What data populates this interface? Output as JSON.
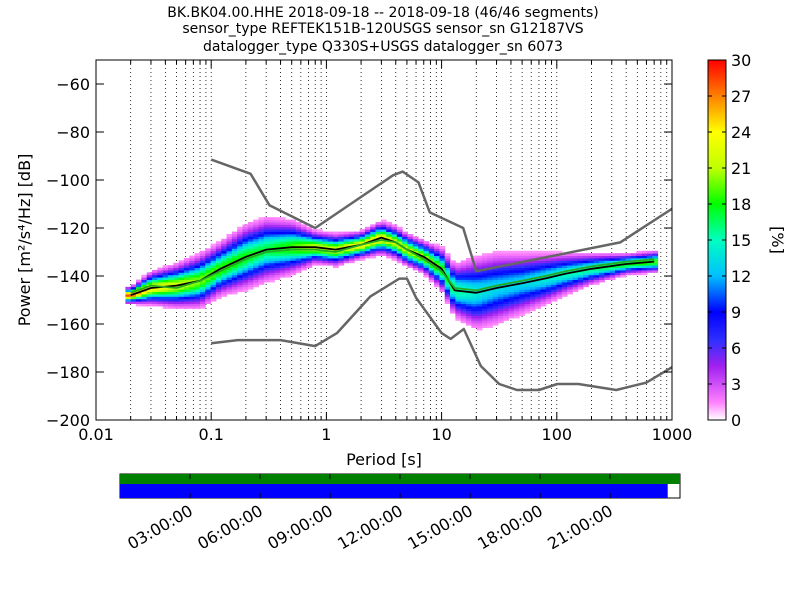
{
  "figure": {
    "title_lines": [
      "BK.BK04.00.HHE   2018-09-18 -- 2018-09-18  (46/46 segments)",
      "sensor_type REFTEK151B-120USGS sensor_sn G12187VS",
      "datalogger_type Q330S+USGS datalogger_sn 6073"
    ]
  },
  "chart_data": [
    {
      "type": "heatmap",
      "xlabel": "Period [s]",
      "ylabel": "Power [m²/s⁴/Hz] [dB]",
      "x_scale": "log",
      "xlim": [
        0.01,
        1000
      ],
      "ylim": [
        -200,
        -50
      ],
      "grid": "vertical-dotted",
      "x_ticks": [
        {
          "value": 0.01,
          "label": "0.01"
        },
        {
          "value": 0.1,
          "label": "0.1"
        },
        {
          "value": 1,
          "label": "1"
        },
        {
          "value": 10,
          "label": "10"
        },
        {
          "value": 100,
          "label": "100"
        },
        {
          "value": 1000,
          "label": "1000"
        }
      ],
      "y_ticks": [
        {
          "value": -60,
          "label": "−60"
        },
        {
          "value": -80,
          "label": "−80"
        },
        {
          "value": -100,
          "label": "−100"
        },
        {
          "value": -120,
          "label": "−120"
        },
        {
          "value": -140,
          "label": "−140"
        },
        {
          "value": -160,
          "label": "−160"
        },
        {
          "value": -180,
          "label": "−180"
        },
        {
          "value": -200,
          "label": "−200"
        }
      ],
      "colorbar": {
        "label": "[%]",
        "range": [
          0,
          30
        ],
        "ticks": [
          "0",
          "3",
          "6",
          "9",
          "12",
          "15",
          "18",
          "21",
          "24",
          "27",
          "30"
        ],
        "colormap": "pqlx"
      },
      "series": [
        {
          "role": "high-noise-model",
          "color": "#666666",
          "x": [
            0.1,
            0.22,
            0.32,
            0.8,
            3.8,
            4.6,
            6.3,
            7.9,
            15.4,
            20,
            354.8,
            1000
          ],
          "y": [
            -91.5,
            -97.4,
            -110.5,
            -120,
            -98,
            -96.5,
            -101,
            -113.5,
            -120,
            -138,
            -126,
            -112
          ]
        },
        {
          "role": "low-noise-model",
          "color": "#666666",
          "x": [
            0.1,
            0.17,
            0.4,
            0.8,
            1.24,
            2.4,
            4.3,
            5,
            6,
            10,
            12,
            15.6,
            21.9,
            31.6,
            45,
            70,
            101,
            154,
            328,
            600,
            1000
          ],
          "y": [
            -168,
            -166.7,
            -166.7,
            -169.2,
            -163.7,
            -148.6,
            -141.1,
            -141.1,
            -149,
            -163.8,
            -166.2,
            -162.1,
            -177.5,
            -185,
            -187.5,
            -187.5,
            -185,
            -185,
            -187.5,
            -184.4,
            -178
          ]
        },
        {
          "role": "mode",
          "color": "#000000",
          "x": [
            0.02,
            0.03,
            0.05,
            0.08,
            0.12,
            0.2,
            0.3,
            0.5,
            0.8,
            1.2,
            2,
            3,
            4,
            5,
            7,
            10,
            13,
            20,
            30,
            50,
            80,
            120,
            200,
            400,
            700
          ],
          "y": [
            -148,
            -145,
            -144,
            -142,
            -137,
            -132,
            -129,
            -128,
            -128,
            -129,
            -127,
            -124,
            -126,
            -129,
            -132,
            -137,
            -146,
            -147,
            -145,
            -143,
            -141,
            -139,
            -137,
            -135,
            -134
          ]
        },
        {
          "role": "mean",
          "color": "#22aa22",
          "x": [
            0.02,
            0.03,
            0.05,
            0.08,
            0.12,
            0.2,
            0.3,
            0.5,
            0.8,
            1.2,
            2,
            3,
            4,
            5,
            7,
            10,
            13,
            20,
            30,
            50,
            80,
            120,
            200,
            400,
            700
          ],
          "y": [
            -147,
            -144,
            -145,
            -142,
            -138,
            -133,
            -130,
            -129,
            -129,
            -130,
            -127,
            -125,
            -126,
            -129,
            -133,
            -138,
            -145,
            -146,
            -144,
            -142,
            -140,
            -138,
            -136,
            -134,
            -133
          ]
        }
      ],
      "density": [
        {
          "x": 0.02,
          "spread": 1.5,
          "peak": 28
        },
        {
          "x": 0.03,
          "spread": 3,
          "peak": 24
        },
        {
          "x": 0.05,
          "spread": 4,
          "peak": 22
        },
        {
          "x": 0.08,
          "spread": 5,
          "peak": 20
        },
        {
          "x": 0.12,
          "spread": 5,
          "peak": 19
        },
        {
          "x": 0.2,
          "spread": 6,
          "peak": 18
        },
        {
          "x": 0.3,
          "spread": 6,
          "peak": 17
        },
        {
          "x": 0.5,
          "spread": 5,
          "peak": 19
        },
        {
          "x": 0.8,
          "spread": 3,
          "peak": 22
        },
        {
          "x": 1.2,
          "spread": 3,
          "peak": 22
        },
        {
          "x": 2,
          "spread": 2.5,
          "peak": 24
        },
        {
          "x": 3,
          "spread": 3,
          "peak": 24
        },
        {
          "x": 4,
          "spread": 3,
          "peak": 22
        },
        {
          "x": 5,
          "spread": 3,
          "peak": 22
        },
        {
          "x": 7,
          "spread": 3,
          "peak": 21
        },
        {
          "x": 10,
          "spread": 4,
          "peak": 19
        },
        {
          "x": 13,
          "spread": 5,
          "peak": 16
        },
        {
          "x": 20,
          "spread": 7,
          "peak": 14
        },
        {
          "x": 30,
          "spread": 7,
          "peak": 13
        },
        {
          "x": 50,
          "spread": 6,
          "peak": 13
        },
        {
          "x": 80,
          "spread": 5,
          "peak": 14
        },
        {
          "x": 120,
          "spread": 4,
          "peak": 15
        },
        {
          "x": 200,
          "spread": 3,
          "peak": 16
        },
        {
          "x": 400,
          "spread": 2,
          "peak": 18
        },
        {
          "x": 700,
          "spread": 2,
          "peak": 19
        }
      ]
    },
    {
      "type": "timeline",
      "x_ticks": [
        "03:00:00",
        "06:00:00",
        "09:00:00",
        "12:00:00",
        "15:00:00",
        "18:00:00",
        "21:00:00"
      ],
      "data_coverage_fraction": 1.0,
      "psd_coverage_fraction": 0.978,
      "colors": {
        "data": "#008000",
        "psd": "#0000ff"
      }
    }
  ]
}
